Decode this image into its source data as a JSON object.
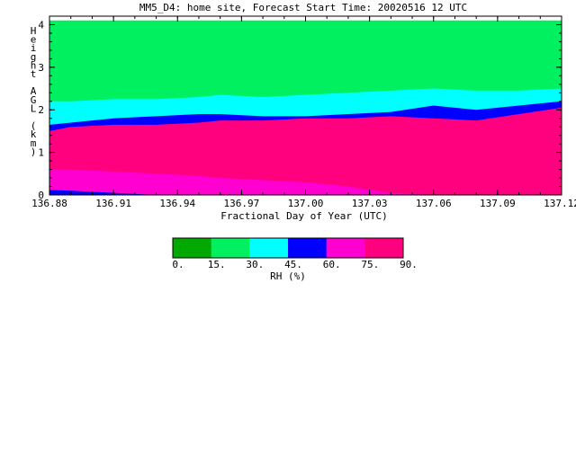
{
  "chart_data": {
    "type": "area",
    "title": "MM5_D4: home site,  Forecast Start Time: 20020516 12 UTC",
    "xlabel": "Fractional Day of Year (UTC)",
    "ylabel": "Height AGL (km)",
    "xlim": [
      136.88,
      137.12
    ],
    "ylim": [
      0,
      4.2
    ],
    "xticks": [
      {
        "value": 136.88,
        "label": "136.88"
      },
      {
        "value": 136.91,
        "label": "136.91"
      },
      {
        "value": 136.94,
        "label": "136.94"
      },
      {
        "value": 136.97,
        "label": "136.97"
      },
      {
        "value": 137.0,
        "label": "137.00"
      },
      {
        "value": 137.03,
        "label": "137.03"
      },
      {
        "value": 137.06,
        "label": "137.06"
      },
      {
        "value": 137.09,
        "label": "137.09"
      },
      {
        "value": 137.12,
        "label": "137.12"
      }
    ],
    "yticks": [
      {
        "value": 0,
        "label": "0"
      },
      {
        "value": 1,
        "label": "1"
      },
      {
        "value": 2,
        "label": "2"
      },
      {
        "value": 3,
        "label": "3"
      },
      {
        "value": 4,
        "label": "4"
      }
    ],
    "x": [
      136.88,
      136.89,
      136.91,
      136.93,
      136.95,
      136.96,
      136.98,
      137.0,
      137.02,
      137.04,
      137.06,
      137.08,
      137.1,
      137.12
    ],
    "contour_top": 4.1,
    "bands": [
      {
        "name": "15-30",
        "color": "#00f060",
        "lower": [
          2.2,
          2.2,
          2.25,
          2.25,
          2.3,
          2.35,
          2.3,
          2.35,
          2.4,
          2.45,
          2.5,
          2.45,
          2.45,
          2.5
        ]
      },
      {
        "name": "30-45",
        "color": "#00ffff",
        "lower": [
          1.65,
          1.7,
          1.8,
          1.85,
          1.9,
          1.9,
          1.85,
          1.85,
          1.9,
          1.95,
          2.1,
          2.0,
          2.1,
          2.2
        ]
      },
      {
        "name": "45-60",
        "color": "#0000ff",
        "lower": [
          1.5,
          1.6,
          1.65,
          1.65,
          1.7,
          1.75,
          1.75,
          1.8,
          1.8,
          1.85,
          1.8,
          1.75,
          1.9,
          2.05
        ]
      },
      {
        "name": "75-90",
        "color": "#ff007f",
        "lower": [
          0.6,
          0.6,
          0.55,
          0.5,
          0.45,
          0.4,
          0.35,
          0.3,
          0.2,
          0.05,
          0.0,
          0.0,
          0.0,
          0.0
        ]
      },
      {
        "name": "60-75",
        "color": "#ff00d0",
        "lower": [
          0.15,
          0.1,
          0.05,
          0.0,
          0.0,
          0.0,
          0.0,
          0.0,
          0.0,
          0.0,
          0.0,
          0.0,
          0.0,
          0.0
        ]
      },
      {
        "name": "45-60-low",
        "color": "#0000ff",
        "lower": [
          0.0,
          0.0,
          0.0,
          0.0,
          0.0,
          0.0,
          0.0,
          0.0,
          0.0,
          0.0,
          0.0,
          0.0,
          0.0,
          0.0
        ]
      }
    ],
    "low_blue_top": [
      0.12,
      0.1,
      0.05,
      0.0,
      0.0,
      0.0,
      0.0,
      0.0,
      0.0,
      0.0,
      0.0,
      0.0,
      0.0,
      0.0
    ],
    "colorbar": {
      "label": "RH (%)",
      "colors": [
        "#00a800",
        "#00f060",
        "#00ffff",
        "#0000ff",
        "#ff00d0",
        "#ff007f"
      ],
      "tick_labels": [
        "0.",
        "15.",
        "30.",
        "45.",
        "60.",
        "75.",
        "90."
      ]
    }
  }
}
